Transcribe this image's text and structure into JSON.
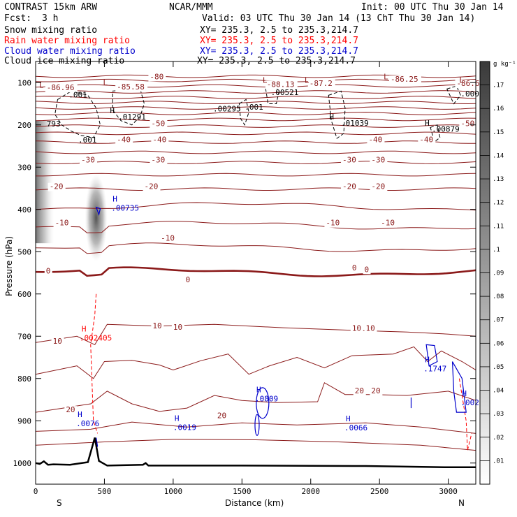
{
  "header": {
    "model": "CONTRAST 15km ARW",
    "fcst_label": "Fcst:",
    "fcst_value": "3 h",
    "center": "NCAR/MMM",
    "init": "Init: 00 UTC Thu 30 Jan 14",
    "valid": "Valid: 03 UTC Thu 30 Jan 14 (13 ChT Thu 30 Jan 14)"
  },
  "fields": [
    {
      "name": "Snow mixing ratio",
      "color": "#000000",
      "xy": "XY= 235.3,  2.5 to 235.3,214.7"
    },
    {
      "name": "Rain water mixing ratio",
      "color": "#ff0000",
      "xy": "XY= 235.3,  2.5 to 235.3,214.7"
    },
    {
      "name": "Cloud water mixing ratio",
      "color": "#0000cc",
      "xy": "XY= 235.3,  2.5 to 235.3,214.7"
    },
    {
      "name": "Cloud ice mixing ratio",
      "color": "#000000",
      "xy": "XY= 235.3,  2.5 to 235.3,214.7"
    }
  ],
  "colorbar": {
    "unit": "g kg⁻¹",
    "ticks": [
      ".17",
      ".16",
      ".15",
      ".14",
      ".13",
      ".12",
      ".11",
      ".1",
      ".09",
      ".08",
      ".07",
      ".06",
      ".05",
      ".04",
      ".03",
      ".02",
      ".01"
    ]
  },
  "chart_data": {
    "type": "cross-section",
    "ylabel": "Pressure (hPa)",
    "xlabel": "Distance (km)",
    "x_end_labels": {
      "left": "S",
      "right": "N"
    },
    "xlim": [
      0,
      3200
    ],
    "ylim": [
      1050,
      50
    ],
    "y_ticks": [
      "100",
      "200",
      "300",
      "400",
      "500",
      "600",
      "700",
      "800",
      "900",
      "1000"
    ],
    "x_ticks": [
      "0",
      "500",
      "1000",
      "1500",
      "2000",
      "2500",
      "3000"
    ],
    "temperature_contour_labels": [
      {
        "label": "-80",
        "x": 830,
        "p": 92
      },
      {
        "label": "-86.96",
        "x": 80,
        "p": 118
      },
      {
        "label": "-85.58",
        "x": 590,
        "p": 116
      },
      {
        "label": "-88.13",
        "x": 1680,
        "p": 110
      },
      {
        "label": "-87.2",
        "x": 1990,
        "p": 108
      },
      {
        "label": "-86.25",
        "x": 2580,
        "p": 98
      },
      {
        "label": "-86.69",
        "x": 3060,
        "p": 108
      },
      {
        "label": "-50",
        "x": 840,
        "p": 203
      },
      {
        "label": "-50",
        "x": 3090,
        "p": 203
      },
      {
        "label": "-40",
        "x": 590,
        "p": 241
      },
      {
        "label": "-40",
        "x": 850,
        "p": 241
      },
      {
        "label": "-40",
        "x": 2420,
        "p": 241
      },
      {
        "label": "-40",
        "x": 2790,
        "p": 241
      },
      {
        "label": "-30",
        "x": 330,
        "p": 289
      },
      {
        "label": "-30",
        "x": 840,
        "p": 289
      },
      {
        "label": "-30",
        "x": 2230,
        "p": 289
      },
      {
        "label": "-30",
        "x": 2440,
        "p": 289
      },
      {
        "label": "-20",
        "x": 100,
        "p": 352
      },
      {
        "label": "-20",
        "x": 790,
        "p": 352
      },
      {
        "label": "-20",
        "x": 2230,
        "p": 352
      },
      {
        "label": "-20",
        "x": 2440,
        "p": 352
      },
      {
        "label": "-10",
        "x": 140,
        "p": 438
      },
      {
        "label": "-10",
        "x": 910,
        "p": 474
      },
      {
        "label": "-10",
        "x": 2110,
        "p": 438
      },
      {
        "label": "-10",
        "x": 2510,
        "p": 438
      },
      {
        "label": "0",
        "x": 75,
        "p": 552
      },
      {
        "label": "0",
        "x": 1090,
        "p": 572
      },
      {
        "label": "0",
        "x": 2300,
        "p": 544
      },
      {
        "label": "0",
        "x": 2390,
        "p": 548
      },
      {
        "label": "10",
        "x": 125,
        "p": 718
      },
      {
        "label": "10",
        "x": 850,
        "p": 681
      },
      {
        "label": "10",
        "x": 1000,
        "p": 685
      },
      {
        "label": "10",
        "x": 2300,
        "p": 687
      },
      {
        "label": "10",
        "x": 2400,
        "p": 687
      },
      {
        "label": "20",
        "x": 220,
        "p": 880
      },
      {
        "label": "20",
        "x": 1320,
        "p": 894
      },
      {
        "label": "20",
        "x": 2320,
        "p": 835
      },
      {
        "label": "20",
        "x": 2440,
        "p": 835
      }
    ],
    "low_high_markers": [
      {
        "kind": "L",
        "x": 25,
        "p": 112
      },
      {
        "kind": "L",
        "x": 490,
        "p": 106
      },
      {
        "kind": "L",
        "x": 1650,
        "p": 100
      },
      {
        "kind": "L",
        "x": 1955,
        "p": 100
      },
      {
        "kind": "L",
        "x": 2530,
        "p": 92
      },
      {
        "kind": "L",
        "x": 3080,
        "p": 100
      },
      {
        "kind": "H",
        "x": 540,
        "p": 172
      },
      {
        "kind": "H",
        "x": 2135,
        "p": 187
      },
      {
        "kind": "H",
        "x": 2830,
        "p": 202
      }
    ],
    "ice_labels": [
      {
        "label": "793",
        "x": 80,
        "p": 204
      },
      {
        "label": ".001",
        "x": 240,
        "p": 135
      },
      {
        "label": ".01291",
        "x": 600,
        "p": 187
      },
      {
        "label": ".001",
        "x": 310,
        "p": 242
      },
      {
        "label": ".00295",
        "x": 1290,
        "p": 168
      },
      {
        "label": ".001",
        "x": 1520,
        "p": 164
      },
      {
        "label": ".00521",
        "x": 1710,
        "p": 129
      },
      {
        "label": ".01039",
        "x": 2220,
        "p": 202
      },
      {
        "label": ".00879",
        "x": 2880,
        "p": 216
      },
      {
        "label": ".00054",
        "x": 3090,
        "p": 133
      }
    ],
    "cloud_water_maxima": [
      {
        "label": ".00735",
        "x": 550,
        "p": 403
      },
      {
        "label": ".0076",
        "x": 295,
        "p": 913
      },
      {
        "label": ".0019",
        "x": 1000,
        "p": 922
      },
      {
        "label": ".0809",
        "x": 1595,
        "p": 854
      },
      {
        "label": ".0066",
        "x": 2245,
        "p": 923
      },
      {
        "label": ".1747",
        "x": 2820,
        "p": 783
      },
      {
        "label": ".002",
        "x": 3090,
        "p": 863
      }
    ],
    "rain_maxima": [
      {
        "label": ".002405",
        "x": 360,
        "p": 710
      }
    ]
  }
}
